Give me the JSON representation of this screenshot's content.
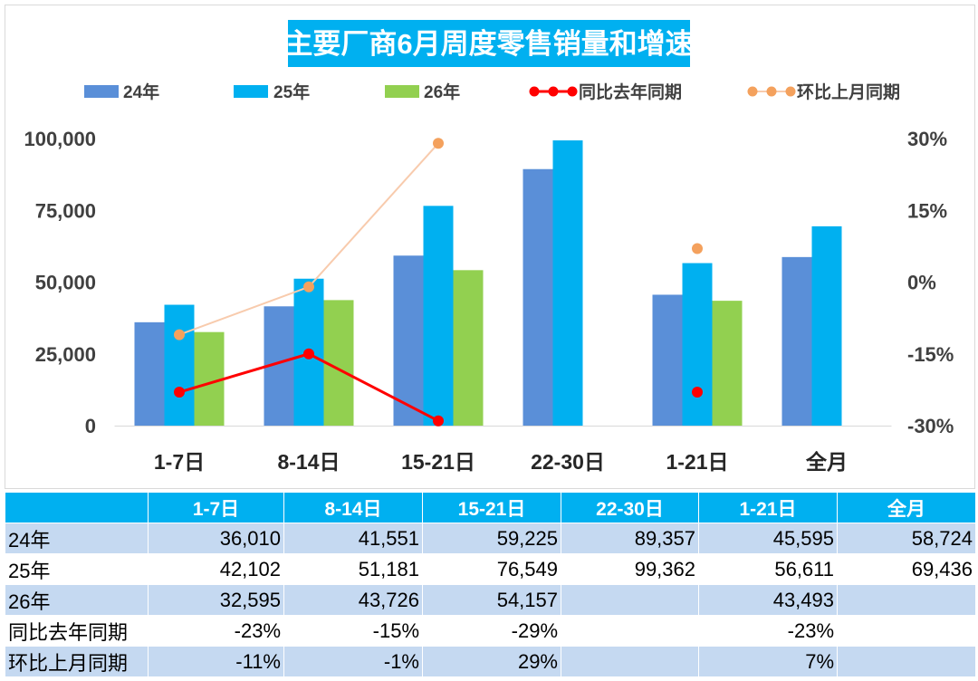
{
  "chart_data": {
    "type": "bar",
    "title": "主要厂商6月周度零售销量和增速",
    "categories": [
      "1-7日",
      "8-14日",
      "15-21日",
      "22-30日",
      "1-21日",
      "全月"
    ],
    "series": [
      {
        "name": "24年",
        "type": "bar",
        "axis": "left",
        "color": "#5A8FD8",
        "values": [
          36010,
          41551,
          59225,
          89357,
          45595,
          58724
        ]
      },
      {
        "name": "25年",
        "type": "bar",
        "axis": "left",
        "color": "#00B0F0",
        "values": [
          42102,
          51181,
          76549,
          99362,
          56611,
          69436
        ]
      },
      {
        "name": "26年",
        "type": "bar",
        "axis": "left",
        "color": "#92D050",
        "values": [
          32595,
          43726,
          54157,
          null,
          43493,
          null
        ]
      },
      {
        "name": "同比去年同期",
        "type": "line",
        "axis": "right",
        "color": "#FF0000",
        "marker_color": "#FF0000",
        "values": [
          -23,
          -15,
          -29,
          null,
          -23,
          null
        ]
      },
      {
        "name": "环比上月同期",
        "type": "line",
        "axis": "right",
        "color": "#F8CBAD",
        "marker_color": "#F4A15D",
        "values": [
          -11,
          -1,
          29,
          null,
          7,
          null
        ]
      }
    ],
    "y_left": {
      "min": 0,
      "max": 100000,
      "ticks": [
        {
          "value": 0,
          "label": "0"
        },
        {
          "value": 25000,
          "label": "25,000"
        },
        {
          "value": 50000,
          "label": "50,000"
        },
        {
          "value": 75000,
          "label": "75,000"
        },
        {
          "value": 100000,
          "label": "100,000"
        }
      ]
    },
    "y_right": {
      "min": -30,
      "max": 30,
      "ticks": [
        {
          "value": -30,
          "label": "-30%"
        },
        {
          "value": -15,
          "label": "-15%"
        },
        {
          "value": 0,
          "label": "0%"
        },
        {
          "value": 15,
          "label": "15%"
        },
        {
          "value": 30,
          "label": "30%"
        }
      ]
    },
    "grid": false,
    "legend_position": "top"
  },
  "table": {
    "columns": [
      "1-7日",
      "8-14日",
      "15-21日",
      "22-30日",
      "1-21日",
      "全月"
    ],
    "rows": [
      {
        "label": "24年",
        "cells": [
          "36,010",
          "41,551",
          "59,225",
          "89,357",
          "45,595",
          "58,724"
        ]
      },
      {
        "label": "25年",
        "cells": [
          "42,102",
          "51,181",
          "76,549",
          "99,362",
          "56,611",
          "69,436"
        ]
      },
      {
        "label": "26年",
        "cells": [
          "32,595",
          "43,726",
          "54,157",
          "",
          "43,493",
          ""
        ]
      },
      {
        "label": "同比去年同期",
        "cells": [
          "-23%",
          "-15%",
          "-29%",
          "",
          "-23%",
          ""
        ]
      },
      {
        "label": "环比上月同期",
        "cells": [
          "-11%",
          "-1%",
          "29%",
          "",
          "7%",
          ""
        ]
      }
    ]
  },
  "colors": {
    "title_bg": "#00B0F0",
    "table_header_bg": "#00B0F0",
    "table_row_shade": "#C5D9F1",
    "table_row_plain": "#FFFFFF",
    "axis_text": "#404040",
    "category_text": "#262626",
    "axis_line": "#D9D9D9"
  }
}
